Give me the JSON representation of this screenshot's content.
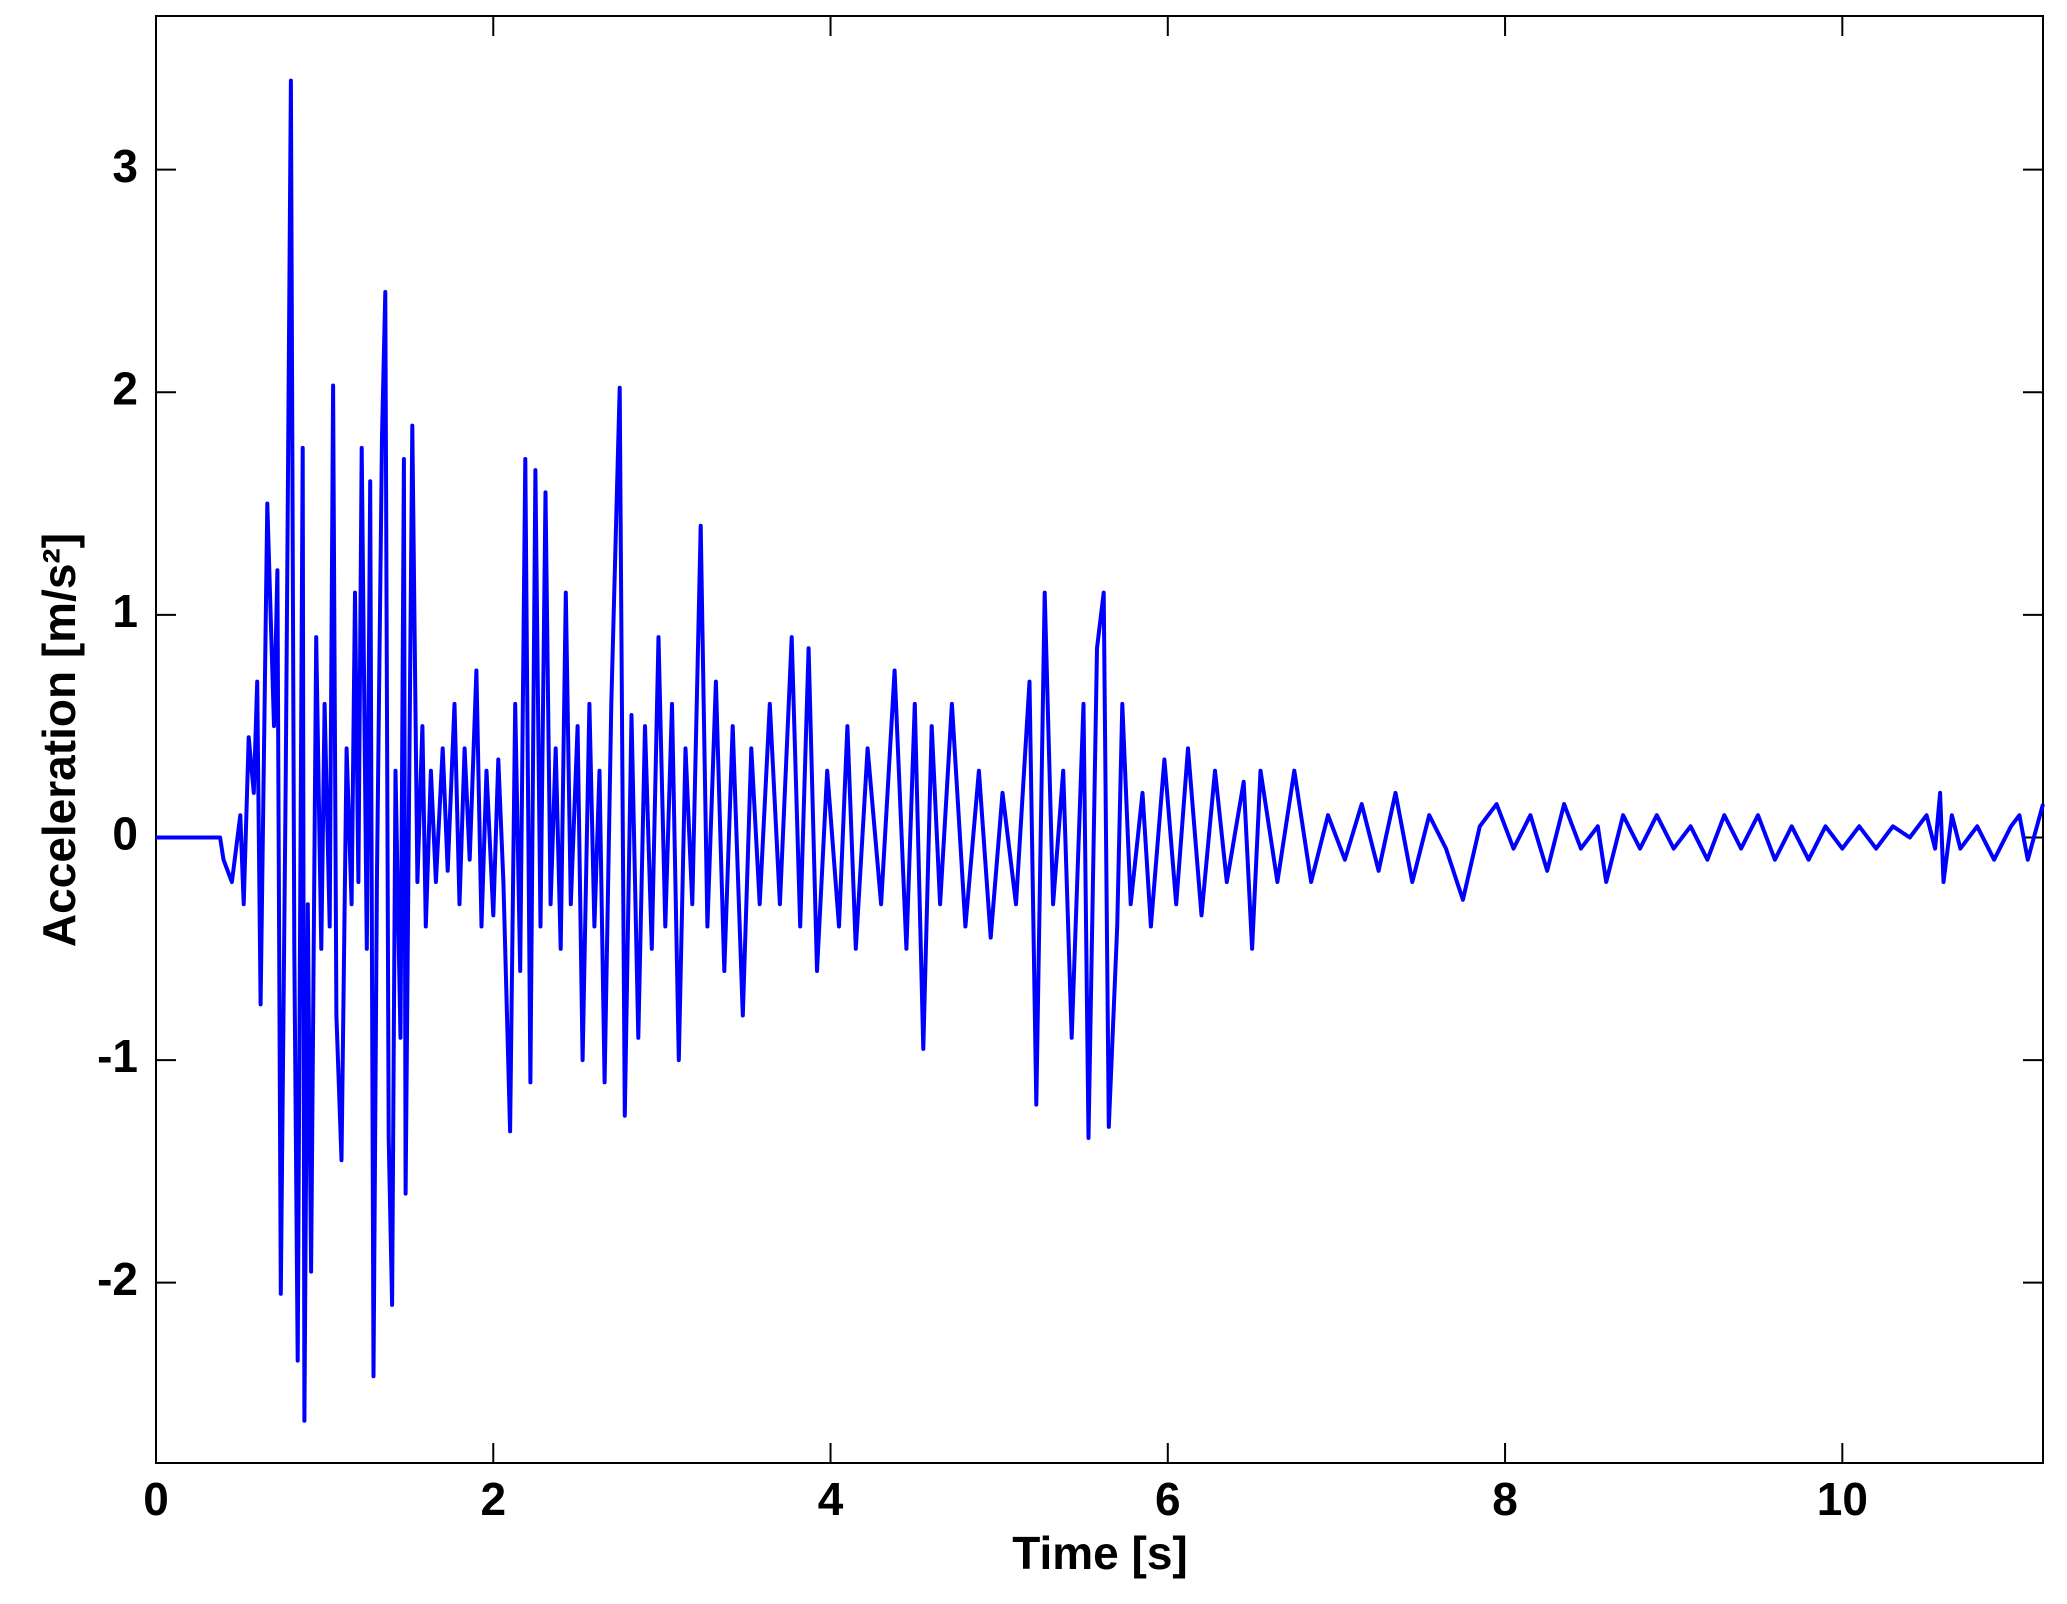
{
  "chart_data": {
    "type": "line",
    "x_label": "Time [s]",
    "y_label": "Acceleration [m/s²]",
    "color": "#0000ff",
    "xlim": [
      0,
      11.19
    ],
    "ylim": [
      -2.81,
      3.69
    ],
    "xticks": [
      0,
      2,
      4,
      6,
      8,
      10
    ],
    "yticks": [
      -2,
      -1,
      0,
      1,
      2,
      3
    ],
    "grid": false,
    "x": [
      0,
      0.38,
      0.4,
      0.45,
      0.5,
      0.52,
      0.55,
      0.58,
      0.6,
      0.62,
      0.66,
      0.7,
      0.72,
      0.74,
      0.77,
      0.8,
      0.82,
      0.84,
      0.87,
      0.88,
      0.9,
      0.92,
      0.95,
      0.98,
      1.0,
      1.03,
      1.05,
      1.07,
      1.1,
      1.13,
      1.16,
      1.18,
      1.2,
      1.22,
      1.25,
      1.27,
      1.29,
      1.31,
      1.34,
      1.36,
      1.38,
      1.4,
      1.42,
      1.45,
      1.47,
      1.48,
      1.52,
      1.55,
      1.58,
      1.6,
      1.63,
      1.66,
      1.7,
      1.73,
      1.77,
      1.8,
      1.83,
      1.86,
      1.9,
      1.93,
      1.96,
      2.0,
      2.03,
      2.06,
      2.1,
      2.13,
      2.16,
      2.19,
      2.22,
      2.25,
      2.28,
      2.31,
      2.34,
      2.37,
      2.4,
      2.43,
      2.46,
      2.5,
      2.53,
      2.57,
      2.6,
      2.63,
      2.66,
      2.7,
      2.75,
      2.78,
      2.82,
      2.86,
      2.9,
      2.94,
      2.98,
      3.02,
      3.06,
      3.1,
      3.14,
      3.18,
      3.23,
      3.27,
      3.32,
      3.37,
      3.42,
      3.48,
      3.53,
      3.58,
      3.64,
      3.7,
      3.77,
      3.82,
      3.87,
      3.92,
      3.98,
      4.05,
      4.1,
      4.15,
      4.22,
      4.3,
      4.38,
      4.45,
      4.5,
      4.55,
      4.6,
      4.65,
      4.72,
      4.8,
      4.88,
      4.95,
      5.02,
      5.1,
      5.18,
      5.22,
      5.27,
      5.32,
      5.38,
      5.43,
      5.5,
      5.53,
      5.58,
      5.62,
      5.65,
      5.7,
      5.73,
      5.78,
      5.85,
      5.9,
      5.98,
      6.05,
      6.12,
      6.2,
      6.28,
      6.35,
      6.45,
      6.5,
      6.55,
      6.65,
      6.75,
      6.85,
      6.95,
      7.05,
      7.15,
      7.25,
      7.35,
      7.45,
      7.55,
      7.65,
      7.75,
      7.85,
      7.95,
      8.05,
      8.15,
      8.25,
      8.35,
      8.45,
      8.55,
      8.6,
      8.7,
      8.8,
      8.9,
      9.0,
      9.1,
      9.2,
      9.3,
      9.4,
      9.5,
      9.6,
      9.7,
      9.8,
      9.9,
      10.0,
      10.1,
      10.2,
      10.3,
      10.4,
      10.5,
      10.55,
      10.58,
      10.6,
      10.65,
      10.7,
      10.8,
      10.9,
      11.0,
      11.05,
      11.1,
      11.19
    ],
    "values": [
      0,
      0,
      -0.1,
      -0.2,
      0.1,
      -0.3,
      0.45,
      0.2,
      0.7,
      -0.75,
      1.5,
      0.5,
      1.2,
      -2.05,
      0.3,
      3.4,
      -0.5,
      -2.35,
      1.75,
      -2.62,
      -0.3,
      -1.95,
      0.9,
      -0.5,
      0.6,
      -0.4,
      2.03,
      -0.8,
      -1.45,
      0.4,
      -0.3,
      1.1,
      -0.2,
      1.75,
      -0.5,
      1.6,
      -2.42,
      -0.2,
      1.8,
      2.45,
      -1.35,
      -2.1,
      0.3,
      -0.9,
      1.7,
      -1.6,
      1.85,
      -0.2,
      0.5,
      -0.4,
      0.3,
      -0.2,
      0.4,
      -0.15,
      0.6,
      -0.3,
      0.4,
      -0.1,
      0.75,
      -0.4,
      0.3,
      -0.35,
      0.35,
      -0.2,
      -1.32,
      0.6,
      -0.6,
      1.7,
      -1.1,
      1.65,
      -0.4,
      1.55,
      -0.3,
      0.4,
      -0.5,
      1.1,
      -0.3,
      0.5,
      -1.0,
      0.6,
      -0.4,
      0.3,
      -1.1,
      0.6,
      2.02,
      -1.25,
      0.55,
      -0.9,
      0.5,
      -0.5,
      0.9,
      -0.4,
      0.6,
      -1.0,
      0.4,
      -0.3,
      1.4,
      -0.4,
      0.7,
      -0.6,
      0.5,
      -0.8,
      0.4,
      -0.3,
      0.6,
      -0.3,
      0.9,
      -0.4,
      0.85,
      -0.6,
      0.3,
      -0.4,
      0.5,
      -0.5,
      0.4,
      -0.3,
      0.75,
      -0.5,
      0.6,
      -0.95,
      0.5,
      -0.3,
      0.6,
      -0.4,
      0.3,
      -0.45,
      0.2,
      -0.3,
      0.7,
      -1.2,
      1.1,
      -0.3,
      0.3,
      -0.9,
      0.6,
      -1.35,
      0.85,
      1.1,
      -1.3,
      -0.4,
      0.6,
      -0.3,
      0.2,
      -0.4,
      0.35,
      -0.3,
      0.4,
      -0.35,
      0.3,
      -0.2,
      0.25,
      -0.5,
      0.3,
      -0.2,
      0.3,
      -0.2,
      0.1,
      -0.1,
      0.15,
      -0.15,
      0.2,
      -0.2,
      0.1,
      -0.05,
      -0.28,
      0.05,
      0.15,
      -0.05,
      0.1,
      -0.15,
      0.15,
      -0.05,
      0.05,
      -0.2,
      0.1,
      -0.05,
      0.1,
      -0.05,
      0.05,
      -0.1,
      0.1,
      -0.05,
      0.1,
      -0.1,
      0.05,
      -0.1,
      0.05,
      -0.05,
      0.05,
      -0.05,
      0.05,
      0.0,
      0.1,
      -0.05,
      0.2,
      -0.2,
      0.1,
      -0.05,
      0.05,
      -0.1,
      0.05,
      0.1,
      -0.1,
      0.15
    ]
  }
}
